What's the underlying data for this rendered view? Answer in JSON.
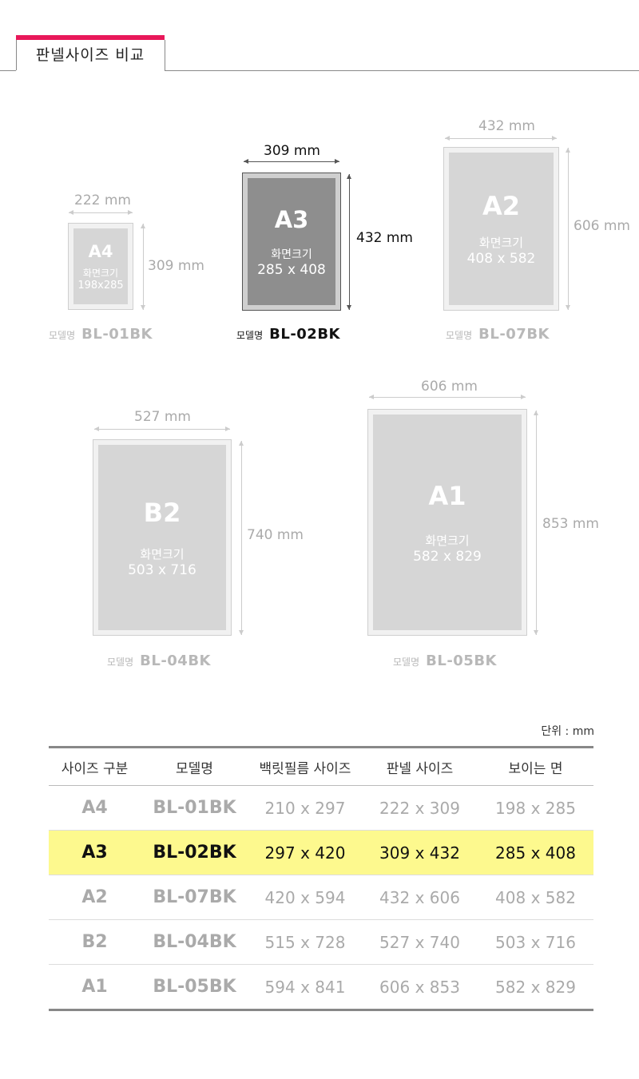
{
  "header": {
    "title": "판넬사이즈 비교"
  },
  "labels": {
    "screen": "화면크기",
    "model": "모델명"
  },
  "frames": [
    {
      "size": "A4",
      "width": "222 mm",
      "height": "309 mm",
      "screen": "198x285",
      "model": "BL-01BK"
    },
    {
      "size": "A3",
      "width": "309 mm",
      "height": "432 mm",
      "screen": "285 x 408",
      "model": "BL-02BK"
    },
    {
      "size": "A2",
      "width": "432 mm",
      "height": "606 mm",
      "screen": "408 x 582",
      "model": "BL-07BK"
    },
    {
      "size": "B2",
      "width": "527 mm",
      "height": "740 mm",
      "screen": "503 x 716",
      "model": "BL-04BK"
    },
    {
      "size": "A1",
      "width": "606 mm",
      "height": "853 mm",
      "screen": "582 x 829",
      "model": "BL-05BK"
    }
  ],
  "table": {
    "unit": "단위 : mm",
    "headers": [
      "사이즈 구분",
      "모델명",
      "백릿필름 사이즈",
      "판넬 사이즈",
      "보이는 면"
    ],
    "rows": [
      [
        "A4",
        "BL-01BK",
        "210 x 297",
        "222 x 309",
        "198 x 285"
      ],
      [
        "A3",
        "BL-02BK",
        "297 x 420",
        "309 x 432",
        "285 x 408"
      ],
      [
        "A2",
        "BL-07BK",
        "420 x 594",
        "432 x 606",
        "408 x 582"
      ],
      [
        "B2",
        "BL-04BK",
        "515 x 728",
        "527 x 740",
        "503 x 716"
      ],
      [
        "A1",
        "BL-05BK",
        "594 x 841",
        "606 x 853",
        "582 x 829"
      ]
    ],
    "highlight_row": 1
  },
  "colors": {
    "accent": "#e8185a",
    "highlight": "#fdf98e"
  }
}
